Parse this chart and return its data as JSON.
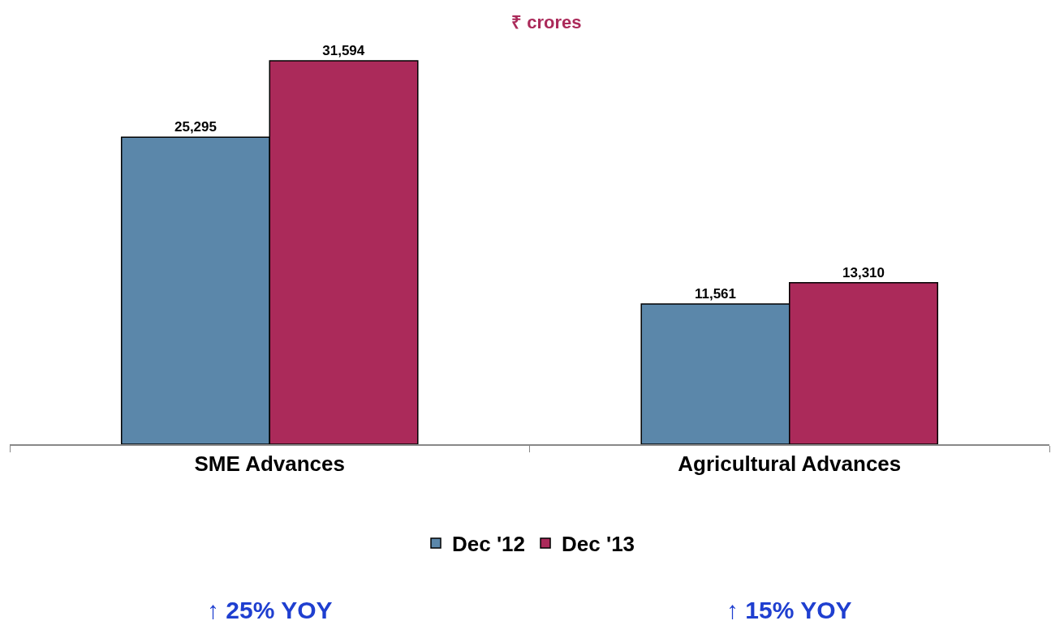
{
  "chart_data": {
    "type": "bar",
    "title": "₹ crores",
    "categories": [
      "SME Advances",
      "Agricultural Advances"
    ],
    "series": [
      {
        "name": "Dec '12",
        "color": "#5b87aa",
        "values": [
          25295,
          11561
        ],
        "value_labels": [
          "25,295",
          "11,561"
        ]
      },
      {
        "name": "Dec '13",
        "color": "#ab2a5a",
        "values": [
          31594,
          13310
        ],
        "value_labels": [
          "31,594",
          "13,310"
        ]
      }
    ],
    "legend": "bottom",
    "annotations": [
      "↑ 25% YOY",
      "↑ 15% YOY"
    ]
  }
}
